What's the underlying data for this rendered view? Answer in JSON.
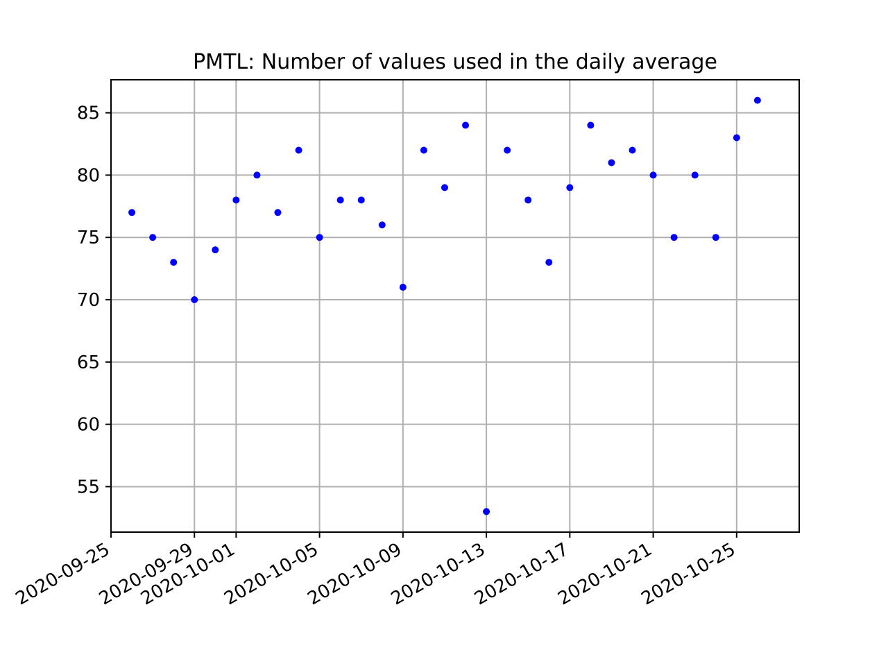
{
  "chart_data": {
    "type": "scatter",
    "title": "PMTL: Number of values used in the daily average",
    "xlabel": "",
    "ylabel": "",
    "x_axis_type": "date",
    "xlim": [
      "2020-09-25",
      "2020-10-28"
    ],
    "ylim": [
      51.35,
      87.65
    ],
    "x_ticks": [
      "2020-09-25",
      "2020-09-29",
      "2020-10-01",
      "2020-10-05",
      "2020-10-09",
      "2020-10-13",
      "2020-10-17",
      "2020-10-21",
      "2020-10-25"
    ],
    "y_ticks": [
      55,
      60,
      65,
      70,
      75,
      80,
      85
    ],
    "grid": true,
    "marker_color": "#0000ff",
    "series": [
      {
        "points": [
          {
            "x": "2020-09-26",
            "y": 77
          },
          {
            "x": "2020-09-27",
            "y": 75
          },
          {
            "x": "2020-09-28",
            "y": 73
          },
          {
            "x": "2020-09-29",
            "y": 70
          },
          {
            "x": "2020-09-30",
            "y": 74
          },
          {
            "x": "2020-10-01",
            "y": 78
          },
          {
            "x": "2020-10-02",
            "y": 80
          },
          {
            "x": "2020-10-03",
            "y": 77
          },
          {
            "x": "2020-10-04",
            "y": 82
          },
          {
            "x": "2020-10-05",
            "y": 75
          },
          {
            "x": "2020-10-06",
            "y": 78
          },
          {
            "x": "2020-10-07",
            "y": 78
          },
          {
            "x": "2020-10-08",
            "y": 76
          },
          {
            "x": "2020-10-09",
            "y": 71
          },
          {
            "x": "2020-10-10",
            "y": 82
          },
          {
            "x": "2020-10-11",
            "y": 79
          },
          {
            "x": "2020-10-12",
            "y": 84
          },
          {
            "x": "2020-10-13",
            "y": 53
          },
          {
            "x": "2020-10-14",
            "y": 82
          },
          {
            "x": "2020-10-15",
            "y": 78
          },
          {
            "x": "2020-10-16",
            "y": 73
          },
          {
            "x": "2020-10-17",
            "y": 79
          },
          {
            "x": "2020-10-18",
            "y": 84
          },
          {
            "x": "2020-10-19",
            "y": 81
          },
          {
            "x": "2020-10-20",
            "y": 82
          },
          {
            "x": "2020-10-21",
            "y": 80
          },
          {
            "x": "2020-10-22",
            "y": 75
          },
          {
            "x": "2020-10-23",
            "y": 80
          },
          {
            "x": "2020-10-24",
            "y": 75
          },
          {
            "x": "2020-10-25",
            "y": 83
          },
          {
            "x": "2020-10-26",
            "y": 86
          }
        ]
      }
    ]
  }
}
